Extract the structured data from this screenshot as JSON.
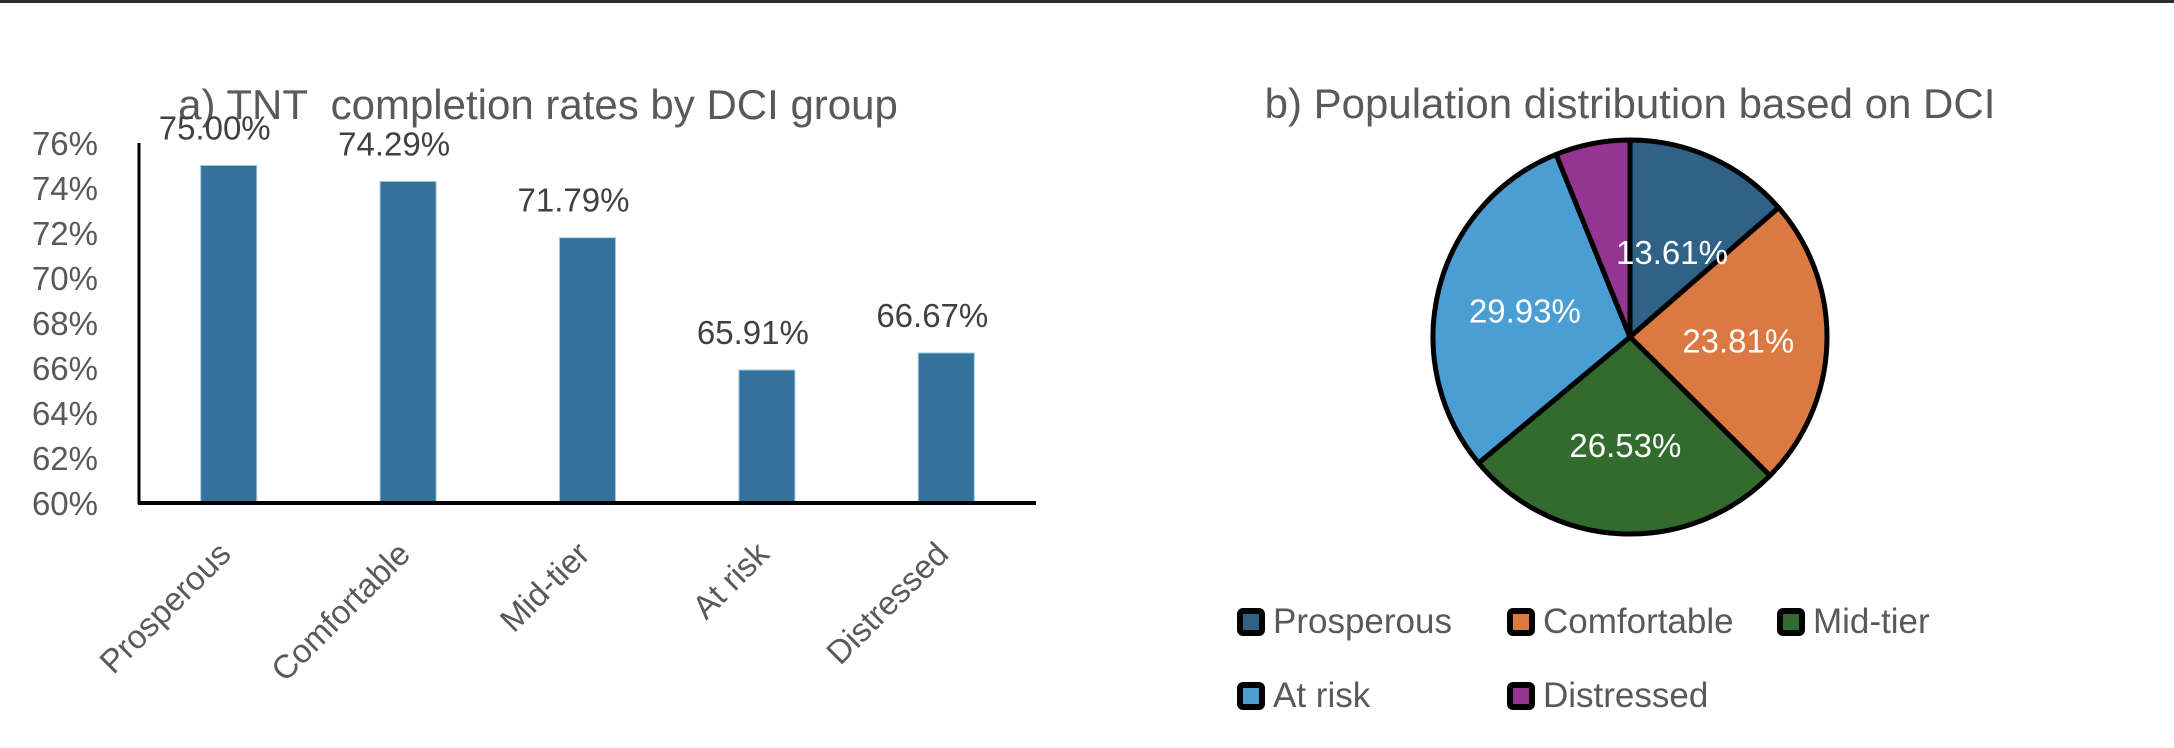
{
  "chart_data": [
    {
      "type": "bar",
      "title": "a) TNT  completion rates by DCI group",
      "xlabel": "",
      "ylabel": "",
      "categories": [
        "Prosperous",
        "Comfortable",
        "Mid-tier",
        "At risk",
        "Distressed"
      ],
      "values": [
        75.0,
        74.29,
        71.79,
        65.91,
        66.67
      ],
      "data_labels": [
        "75.00%",
        "74.29%",
        "71.79%",
        "65.91%",
        "66.67%"
      ],
      "ylim": [
        60,
        76
      ],
      "yticks": [
        60,
        62,
        64,
        66,
        68,
        70,
        72,
        74,
        76
      ],
      "ytick_labels": [
        "60%",
        "62%",
        "64%",
        "66%",
        "68%",
        "70%",
        "72%",
        "74%",
        "76%"
      ],
      "grid": false,
      "xtick_rotation": "-45 degrees",
      "color": "#34729B"
    },
    {
      "type": "pie",
      "title": "b) Population distribution based on DCI",
      "categories": [
        "Prosperous",
        "Comfortable",
        "Mid-tier",
        "At risk",
        "Distressed"
      ],
      "values": [
        13.61,
        23.81,
        26.53,
        29.93,
        6.12
      ],
      "data_labels": [
        "13.61%",
        "23.81%",
        "26.53%",
        "29.93%",
        ""
      ],
      "colors": [
        "#2F6286",
        "#DA7A42",
        "#336B2E",
        "#4A9ED4",
        "#943592"
      ],
      "start_angle": "12 o'clock, clockwise",
      "legend": {
        "placement": "bottom",
        "entries": [
          "Prosperous",
          "Comfortable",
          "Mid-tier",
          "At risk",
          "Distressed"
        ]
      }
    }
  ]
}
